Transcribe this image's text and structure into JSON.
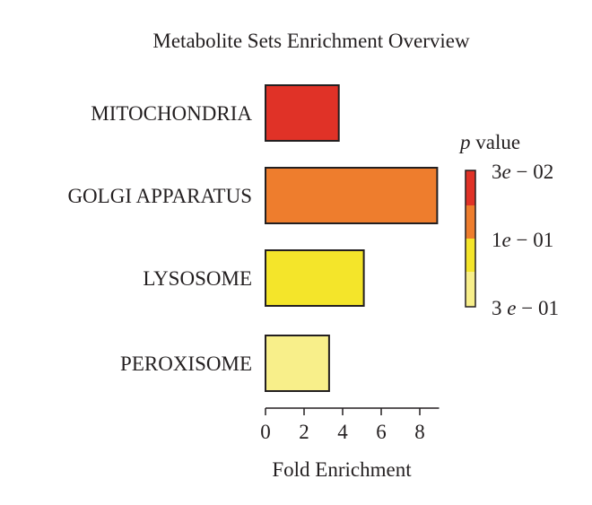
{
  "chart_data": {
    "type": "bar",
    "orientation": "horizontal",
    "title": "Metabolite Sets Enrichment Overview",
    "xlabel": "Fold Enrichment",
    "ylabel": "",
    "xlim": [
      0,
      9
    ],
    "xticks": [
      0,
      2,
      4,
      6,
      8
    ],
    "categories": [
      "MITOCHONDRIA",
      "GOLGI APPARATUS",
      "LYSOSOME",
      "PEROXISOME"
    ],
    "values": [
      3.8,
      8.9,
      5.1,
      3.3
    ],
    "bar_colors": [
      "#e03227",
      "#ee7d2d",
      "#f4e52a",
      "#f8ef8a"
    ],
    "legend": {
      "title_italic": "p",
      "title_rest": " value",
      "placement": "right",
      "colors": [
        "#e03227",
        "#ee7d2d",
        "#f4e52a",
        "#f8ef8a"
      ],
      "labels": [
        {
          "mant": "3",
          "exp": "e",
          "rest": " − 02"
        },
        {
          "mant": "1",
          "exp": "e",
          "rest": " − 01"
        },
        {
          "mant": "3 ",
          "exp": "e",
          "rest": " − 01"
        }
      ]
    },
    "grid": false
  }
}
